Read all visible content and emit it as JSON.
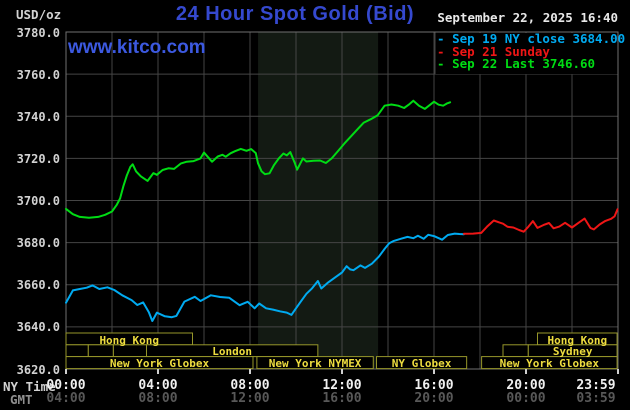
{
  "header": {
    "units": "USD/oz",
    "title": "24 Hour Spot Gold (Bid)",
    "datetime": "September 22, 2025 16:40",
    "watermark": "www.kitco.com"
  },
  "colors": {
    "title_blue": "#3549cf",
    "watermark_blue": "#3c59e0",
    "date_white": "#e8e8e8",
    "axis_label_gray": "#d2d2d2",
    "gmt_gray": "#585858",
    "gmt_title_gray": "#8f8f8f",
    "grid_gray": "#454545",
    "frame_gray": "#707070",
    "band_tint": "#131a13",
    "session_border": "#96962a",
    "session_text": "#eedd3f",
    "cyan": "#00aaf0",
    "red": "#ee1616",
    "green": "#00dc14"
  },
  "legend": [
    {
      "label": "Sep 19 NY close 3684.00",
      "color": "#00aaf0"
    },
    {
      "label": "Sep 21 Sunday",
      "color": "#ee1616"
    },
    {
      "label": "Sep 22 Last 3746.60",
      "color": "#00dc14"
    }
  ],
  "axes": {
    "ny_label": "NY Time",
    "gmt_label": "GMT",
    "y_tick_labels": [
      "3780.0",
      "3760.0",
      "3740.0",
      "3720.0",
      "3700.0",
      "3680.0",
      "3660.0",
      "3640.0",
      "3620.0"
    ],
    "ny_tick_labels": [
      "00:00",
      "04:00",
      "08:00",
      "12:00",
      "16:00",
      "20:00",
      "23:59"
    ],
    "gmt_tick_labels": [
      "04:00",
      "08:00",
      "12:00",
      "16:00",
      "20:00",
      "00:00",
      "03:59"
    ]
  },
  "sessions": {
    "rows": [
      [
        {
          "from": 0,
          "to": 5.5,
          "label": "Hong Kong"
        },
        {
          "from": 20.5,
          "to": 23.96,
          "label": "Hong Kong"
        }
      ],
      [
        {
          "from": 0,
          "to": 0.97,
          "label": ""
        },
        {
          "from": 0.97,
          "to": 2.06,
          "label": ""
        },
        {
          "from": 2.06,
          "to": 3.5,
          "label": ""
        },
        {
          "from": 3.5,
          "to": 10.95,
          "label": "London"
        },
        {
          "from": 19.0,
          "to": 20.1,
          "label": ""
        },
        {
          "from": 20.1,
          "to": 23.96,
          "label": "Sydney"
        }
      ],
      [
        {
          "from": 0,
          "to": 8.13,
          "label": "New York Globex"
        },
        {
          "from": 8.3,
          "to": 13.36,
          "label": "New York NYMEX"
        },
        {
          "from": 13.5,
          "to": 17.42,
          "label": "NY Globex"
        },
        {
          "from": 18.07,
          "to": 23.96,
          "label": "New York Globex"
        }
      ]
    ]
  },
  "chart_data": {
    "type": "line",
    "title": "24 Hour Spot Gold (Bid)",
    "ylabel": "USD/oz",
    "y_min": 3620,
    "y_max": 3780,
    "y_tick_step": 20,
    "x_hours_range": [
      0,
      24
    ],
    "x_gridline_every_hours": 2,
    "grid": true,
    "highlight_band_hours": [
      8.35,
      13.57
    ],
    "series": [
      {
        "name": "Sep 19 NY close 3684.00",
        "color": "#00aaf0",
        "points": [
          [
            0,
            3651.5
          ],
          [
            0.3,
            3657.3
          ],
          [
            0.6,
            3658
          ],
          [
            0.9,
            3658.6
          ],
          [
            1.15,
            3659.7
          ],
          [
            1.45,
            3658
          ],
          [
            1.8,
            3658.8
          ],
          [
            2.1,
            3657.5
          ],
          [
            2.45,
            3655
          ],
          [
            2.85,
            3652.7
          ],
          [
            3.1,
            3650.4
          ],
          [
            3.35,
            3651.6
          ],
          [
            3.6,
            3647
          ],
          [
            3.75,
            3642.8
          ],
          [
            3.95,
            3646.8
          ],
          [
            4.3,
            3645
          ],
          [
            4.6,
            3644.6
          ],
          [
            4.8,
            3645.2
          ],
          [
            5.15,
            3652
          ],
          [
            5.6,
            3654.3
          ],
          [
            5.85,
            3652.3
          ],
          [
            6.3,
            3655
          ],
          [
            6.7,
            3654.2
          ],
          [
            7.1,
            3653.8
          ],
          [
            7.55,
            3650.3
          ],
          [
            7.7,
            3651
          ],
          [
            7.9,
            3651.9
          ],
          [
            8.2,
            3648.8
          ],
          [
            8.4,
            3651.1
          ],
          [
            8.7,
            3648.8
          ],
          [
            9.0,
            3648.2
          ],
          [
            9.3,
            3647.4
          ],
          [
            9.6,
            3646.8
          ],
          [
            9.8,
            3645.7
          ],
          [
            10.0,
            3648.8
          ],
          [
            10.2,
            3651.9
          ],
          [
            10.45,
            3655.7
          ],
          [
            10.7,
            3658.3
          ],
          [
            10.95,
            3661.8
          ],
          [
            11.1,
            3658.2
          ],
          [
            11.4,
            3661.1
          ],
          [
            11.7,
            3663.5
          ],
          [
            12.0,
            3665.8
          ],
          [
            12.2,
            3668.8
          ],
          [
            12.35,
            3667.3
          ],
          [
            12.5,
            3666.9
          ],
          [
            12.8,
            3669.2
          ],
          [
            13.0,
            3668
          ],
          [
            13.3,
            3670
          ],
          [
            13.6,
            3673.3
          ],
          [
            13.85,
            3677
          ],
          [
            14.05,
            3679.7
          ],
          [
            14.25,
            3680.8
          ],
          [
            14.55,
            3681.8
          ],
          [
            14.85,
            3682.7
          ],
          [
            15.1,
            3682.1
          ],
          [
            15.3,
            3683.3
          ],
          [
            15.55,
            3681.8
          ],
          [
            15.75,
            3683.7
          ],
          [
            16.0,
            3683.1
          ],
          [
            16.35,
            3681.4
          ],
          [
            16.6,
            3683.6
          ],
          [
            16.9,
            3684.3
          ],
          [
            17.1,
            3684.1
          ],
          [
            17.3,
            3684.0
          ]
        ]
      },
      {
        "name": "Sep 21 Sunday",
        "color": "#ee1616",
        "points": [
          [
            17.3,
            3684.2
          ],
          [
            17.7,
            3684.3
          ],
          [
            18.05,
            3684.6
          ],
          [
            18.3,
            3687.5
          ],
          [
            18.6,
            3690.5
          ],
          [
            18.85,
            3689.5
          ],
          [
            19.0,
            3689
          ],
          [
            19.2,
            3687.5
          ],
          [
            19.45,
            3687.2
          ],
          [
            19.7,
            3686
          ],
          [
            19.9,
            3685.2
          ],
          [
            20.1,
            3687.5
          ],
          [
            20.3,
            3690.2
          ],
          [
            20.5,
            3687
          ],
          [
            20.75,
            3688.3
          ],
          [
            21.0,
            3689.3
          ],
          [
            21.2,
            3686.8
          ],
          [
            21.45,
            3687.6
          ],
          [
            21.7,
            3689.4
          ],
          [
            22.0,
            3687.2
          ],
          [
            22.3,
            3689.5
          ],
          [
            22.55,
            3691.4
          ],
          [
            22.8,
            3687
          ],
          [
            22.95,
            3686.3
          ],
          [
            23.2,
            3688.6
          ],
          [
            23.45,
            3690.3
          ],
          [
            23.7,
            3691.3
          ],
          [
            23.85,
            3692.5
          ],
          [
            23.98,
            3695.8
          ]
        ]
      },
      {
        "name": "Sep 22 Last 3746.60",
        "color": "#00dc14",
        "points": [
          [
            0,
            3696
          ],
          [
            0.3,
            3693.5
          ],
          [
            0.6,
            3692.2
          ],
          [
            1.0,
            3691.8
          ],
          [
            1.4,
            3692.2
          ],
          [
            1.7,
            3693.2
          ],
          [
            2.0,
            3694.8
          ],
          [
            2.2,
            3697.8
          ],
          [
            2.35,
            3701
          ],
          [
            2.5,
            3707
          ],
          [
            2.65,
            3712
          ],
          [
            2.8,
            3716
          ],
          [
            2.9,
            3717.2
          ],
          [
            3.05,
            3713.8
          ],
          [
            3.25,
            3711.5
          ],
          [
            3.55,
            3709.3
          ],
          [
            3.8,
            3713
          ],
          [
            3.95,
            3712.2
          ],
          [
            4.2,
            3714.5
          ],
          [
            4.45,
            3715.3
          ],
          [
            4.7,
            3715
          ],
          [
            5.0,
            3717.6
          ],
          [
            5.25,
            3718.4
          ],
          [
            5.55,
            3718.7
          ],
          [
            5.85,
            3720
          ],
          [
            6.0,
            3722.8
          ],
          [
            6.1,
            3721.5
          ],
          [
            6.35,
            3718.4
          ],
          [
            6.6,
            3720.9
          ],
          [
            6.8,
            3721.7
          ],
          [
            6.95,
            3720.8
          ],
          [
            7.15,
            3722.4
          ],
          [
            7.35,
            3723.4
          ],
          [
            7.6,
            3724.5
          ],
          [
            7.85,
            3723.6
          ],
          [
            8.05,
            3724.4
          ],
          [
            8.25,
            3722.5
          ],
          [
            8.35,
            3717.7
          ],
          [
            8.5,
            3713.9
          ],
          [
            8.65,
            3712.5
          ],
          [
            8.85,
            3712.9
          ],
          [
            9.05,
            3716.9
          ],
          [
            9.25,
            3720
          ],
          [
            9.45,
            3722.3
          ],
          [
            9.6,
            3721.4
          ],
          [
            9.75,
            3723
          ],
          [
            9.95,
            3717.7
          ],
          [
            10.05,
            3714.6
          ],
          [
            10.3,
            3720
          ],
          [
            10.45,
            3718.5
          ],
          [
            10.75,
            3718.9
          ],
          [
            11.05,
            3719
          ],
          [
            11.3,
            3717.8
          ],
          [
            11.55,
            3720
          ],
          [
            11.85,
            3723.8
          ],
          [
            12.1,
            3727
          ],
          [
            12.35,
            3730
          ],
          [
            12.65,
            3733.5
          ],
          [
            12.95,
            3737
          ],
          [
            13.25,
            3738.6
          ],
          [
            13.55,
            3740.5
          ],
          [
            13.85,
            3745
          ],
          [
            14.15,
            3745.6
          ],
          [
            14.45,
            3745
          ],
          [
            14.7,
            3743.9
          ],
          [
            14.9,
            3745.5
          ],
          [
            15.1,
            3747.4
          ],
          [
            15.35,
            3745
          ],
          [
            15.6,
            3743.5
          ],
          [
            15.8,
            3745.2
          ],
          [
            16.0,
            3746.9
          ],
          [
            16.2,
            3745.5
          ],
          [
            16.4,
            3745
          ],
          [
            16.55,
            3746
          ],
          [
            16.7,
            3746.6
          ]
        ]
      }
    ]
  }
}
